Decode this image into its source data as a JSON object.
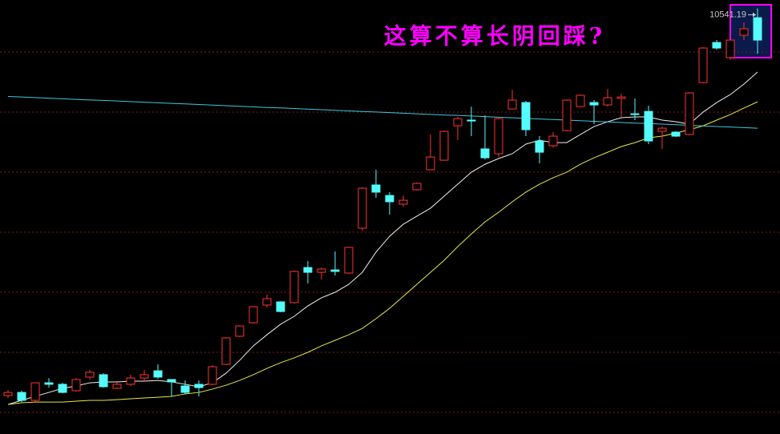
{
  "chart_data": {
    "type": "candlestick",
    "annotation": "这算不算长阴回踩?",
    "ylim": [
      7706,
      10597
    ],
    "yticks": [
      10250,
      9850,
      9450,
      9050,
      8650,
      8250,
      7850
    ],
    "grid": true,
    "tick_labels": false,
    "up_color": "#ff3232",
    "down_color": "#54fcfc",
    "candles": {
      "open": [
        7962,
        7983,
        7930,
        8047,
        8037,
        7994,
        8085,
        8101,
        8010,
        8037,
        8079,
        8127,
        8069,
        8026,
        8037,
        8037,
        8170,
        8357,
        8447,
        8565,
        8586,
        8581,
        8815,
        8783,
        8799,
        8778,
        9077,
        9365,
        9295,
        9237,
        9333,
        9466,
        9530,
        9759,
        9797,
        9605,
        9573,
        9871,
        9914,
        9658,
        9626,
        9727,
        9887,
        9914,
        9898,
        9941,
        9839,
        9855,
        9722,
        9717,
        9701,
        10047,
        10314,
        10213,
        10362,
        10479
      ],
      "high": [
        7999,
        7994,
        8047,
        8079,
        8047,
        8079,
        8133,
        8111,
        8047,
        8101,
        8133,
        8170,
        8069,
        8063,
        8063,
        8165,
        8351,
        8431,
        8559,
        8634,
        8591,
        8794,
        8858,
        8815,
        8922,
        8954,
        9349,
        9466,
        9317,
        9295,
        9381,
        9701,
        9727,
        9818,
        9887,
        9829,
        9818,
        9999,
        9925,
        9690,
        9717,
        9935,
        9967,
        9930,
        10005,
        9973,
        9941,
        9893,
        9754,
        9722,
        9983,
        10282,
        10330,
        10330,
        10447,
        10541.19
      ],
      "low": [
        7946,
        7919,
        7919,
        8015,
        7978,
        7989,
        8069,
        8015,
        8005,
        8026,
        8058,
        8074,
        7957,
        7973,
        7957,
        8031,
        8165,
        8351,
        8442,
        8549,
        8517,
        8575,
        8709,
        8735,
        8762,
        8773,
        9061,
        9279,
        9167,
        9221,
        9327,
        9461,
        9525,
        9663,
        9690,
        9535,
        9551,
        9871,
        9690,
        9509,
        9615,
        9722,
        9882,
        9770,
        9887,
        9818,
        9797,
        9637,
        9605,
        9685,
        9695,
        10042,
        10266,
        10197,
        10330,
        10239
      ],
      "close": [
        7983,
        7930,
        8047,
        8037,
        7983,
        8069,
        8117,
        8021,
        8037,
        8079,
        8101,
        8085,
        8053,
        7983,
        8015,
        8154,
        8346,
        8426,
        8554,
        8607,
        8522,
        8789,
        8783,
        8805,
        8789,
        8949,
        9343,
        9317,
        9253,
        9263,
        9375,
        9551,
        9722,
        9807,
        9791,
        9546,
        9807,
        9930,
        9733,
        9583,
        9690,
        9930,
        9962,
        9898,
        9946,
        9951,
        9834,
        9658,
        9743,
        9690,
        9978,
        10277,
        10277,
        10330,
        10405,
        10330
      ]
    },
    "lines": [
      {
        "color": "#f0f0f0",
        "values": [
          7903,
          7930,
          7957,
          7983,
          8010,
          8026,
          8047,
          8053,
          8053,
          8058,
          8058,
          8063,
          8053,
          8037,
          8021,
          8047,
          8111,
          8197,
          8293,
          8367,
          8437,
          8490,
          8559,
          8613,
          8650,
          8703,
          8783,
          8917,
          9023,
          9103,
          9157,
          9210,
          9290,
          9370,
          9450,
          9503,
          9541,
          9573,
          9637,
          9663,
          9647,
          9647,
          9701,
          9754,
          9786,
          9813,
          9818,
          9818,
          9797,
          9786,
          9770,
          9850,
          9914,
          9967,
          10037,
          10117
        ]
      },
      {
        "color": "#e8e84a",
        "values": [
          7903,
          7914,
          7919,
          7919,
          7919,
          7925,
          7930,
          7930,
          7935,
          7941,
          7946,
          7951,
          7957,
          7973,
          7983,
          8005,
          8031,
          8063,
          8101,
          8143,
          8181,
          8213,
          8250,
          8293,
          8330,
          8367,
          8410,
          8474,
          8543,
          8623,
          8703,
          8783,
          8863,
          8954,
          9039,
          9119,
          9183,
          9253,
          9317,
          9370,
          9413,
          9450,
          9503,
          9546,
          9583,
          9621,
          9647,
          9679,
          9690,
          9711,
          9733,
          9759,
          9797,
          9834,
          9877,
          9919
        ]
      },
      {
        "color": "#3cc8e0",
        "values": [
          9954,
          9951,
          9947,
          9943,
          9939,
          9935,
          9931,
          9928,
          9924,
          9920,
          9916,
          9912,
          9908,
          9905,
          9901,
          9897,
          9893,
          9889,
          9885,
          9881,
          9878,
          9874,
          9870,
          9866,
          9862,
          9858,
          9854,
          9851,
          9847,
          9843,
          9839,
          9835,
          9831,
          9828,
          9824,
          9820,
          9816,
          9812,
          9808,
          9804,
          9801,
          9797,
          9793,
          9789,
          9785,
          9781,
          9777,
          9774,
          9770,
          9766,
          9762,
          9758,
          9754,
          9751,
          9747,
          9743
        ]
      }
    ]
  }
}
